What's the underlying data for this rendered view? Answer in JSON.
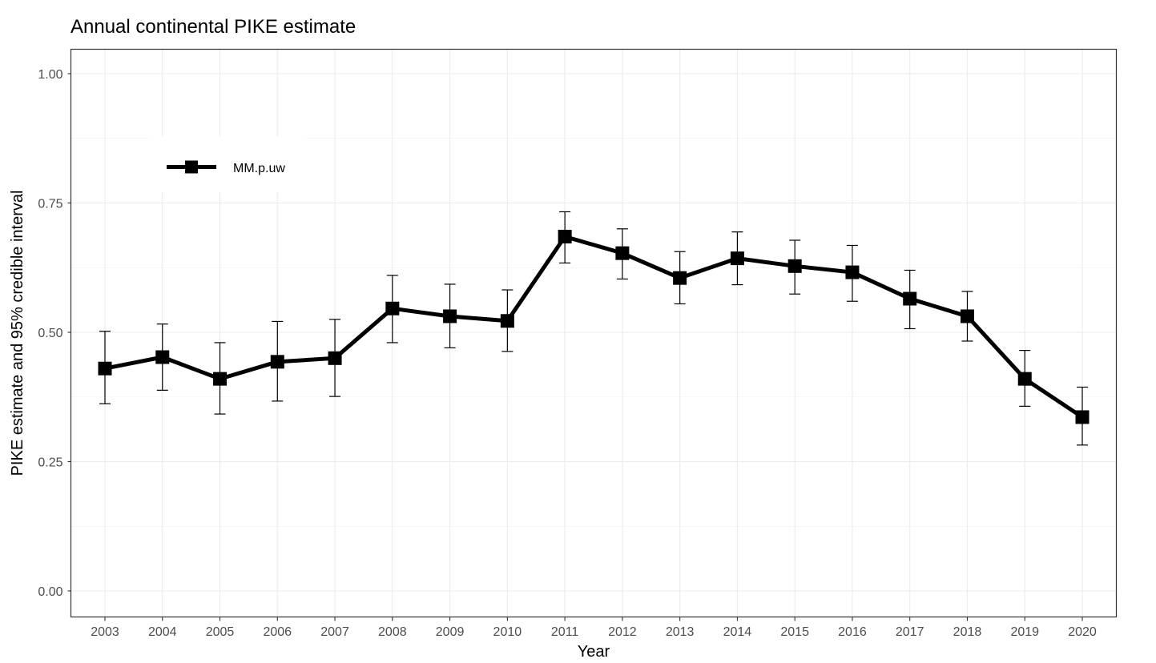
{
  "chart_data": {
    "type": "line",
    "title": "Annual continental PIKE estimate",
    "xlabel": "Year",
    "ylabel": "PIKE estimate and 95% credible interval",
    "categories": [
      "2003",
      "2004",
      "2005",
      "2006",
      "2007",
      "2008",
      "2009",
      "2010",
      "2011",
      "2012",
      "2013",
      "2014",
      "2015",
      "2016",
      "2017",
      "2018",
      "2019",
      "2020"
    ],
    "ylim": [
      0,
      1
    ],
    "yticks": [
      "0.00",
      "0.25",
      "0.50",
      "0.75",
      "1.00"
    ],
    "grid": true,
    "legend_position": "top-left",
    "series": [
      {
        "name": "MM.p.uw",
        "color": "#000000",
        "values": [
          0.43,
          0.452,
          0.41,
          0.443,
          0.45,
          0.546,
          0.531,
          0.522,
          0.685,
          0.653,
          0.605,
          0.643,
          0.628,
          0.616,
          0.565,
          0.531,
          0.41,
          0.336
        ],
        "lower": [
          0.362,
          0.388,
          0.342,
          0.367,
          0.376,
          0.48,
          0.47,
          0.463,
          0.634,
          0.603,
          0.555,
          0.592,
          0.574,
          0.56,
          0.507,
          0.483,
          0.357,
          0.282
        ],
        "upper": [
          0.502,
          0.516,
          0.48,
          0.521,
          0.525,
          0.61,
          0.593,
          0.582,
          0.733,
          0.7,
          0.656,
          0.694,
          0.678,
          0.668,
          0.62,
          0.579,
          0.465,
          0.394
        ]
      }
    ]
  }
}
